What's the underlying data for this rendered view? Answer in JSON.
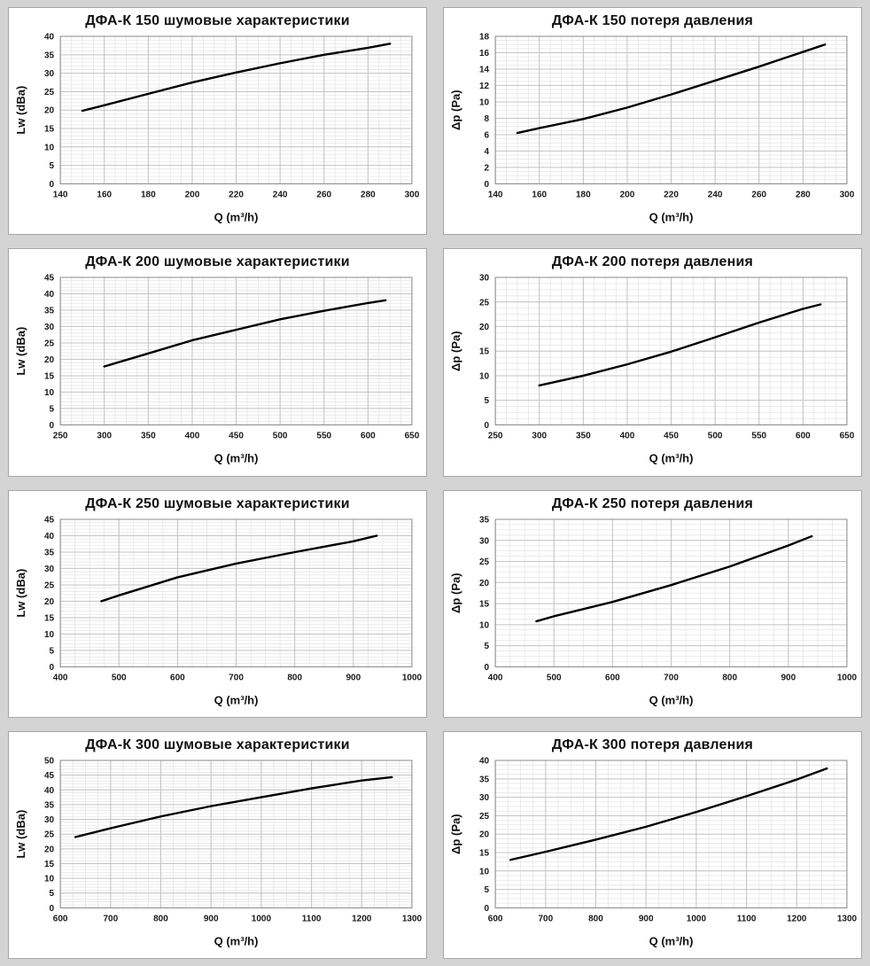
{
  "colors": {
    "page_bg": "#d4d4d4",
    "card_bg": "#ffffff",
    "card_border": "#a6a6a6",
    "curve": "#000000",
    "grid_major": "#c3c3c3",
    "grid_minor": "#e3e3e3",
    "frame": "#8c8c8c"
  },
  "chart_data": [
    {
      "type": "line",
      "title": "ДФА-К 150 шумовые характеристики",
      "xlabel": "Q (m³/h)",
      "ylabel": "Lw (dBa)",
      "xlim": [
        140,
        300
      ],
      "ylim": [
        0,
        40
      ],
      "x_major": 20,
      "x_minor": 5,
      "y_major": 5,
      "y_minor": 1,
      "grid": true,
      "legend": "none",
      "points": [
        [
          150,
          19.8
        ],
        [
          160,
          21.3
        ],
        [
          180,
          24.4
        ],
        [
          200,
          27.5
        ],
        [
          220,
          30.2
        ],
        [
          240,
          32.7
        ],
        [
          260,
          35.0
        ],
        [
          280,
          36.9
        ],
        [
          290,
          38.0
        ]
      ]
    },
    {
      "type": "line",
      "title": "ДФА-К 150 потеря давления",
      "xlabel": "Q (m³/h)",
      "ylabel": "Δp (Pa)",
      "xlim": [
        140,
        300
      ],
      "ylim": [
        0,
        18
      ],
      "x_major": 20,
      "x_minor": 5,
      "y_major": 2,
      "y_minor": 0.5,
      "grid": true,
      "legend": "none",
      "points": [
        [
          150,
          6.2
        ],
        [
          160,
          6.8
        ],
        [
          180,
          7.9
        ],
        [
          200,
          9.3
        ],
        [
          220,
          10.9
        ],
        [
          240,
          12.6
        ],
        [
          260,
          14.3
        ],
        [
          280,
          16.1
        ],
        [
          290,
          17.0
        ]
      ]
    },
    {
      "type": "line",
      "title": "ДФА-К 200 шумовые характеристики",
      "xlabel": "Q (m³/h)",
      "ylabel": "Lw (dBa)",
      "xlim": [
        250,
        650
      ],
      "ylim": [
        0,
        45
      ],
      "x_major": 50,
      "x_minor": 12.5,
      "y_major": 5,
      "y_minor": 1,
      "grid": true,
      "legend": "none",
      "points": [
        [
          300,
          17.8
        ],
        [
          350,
          21.8
        ],
        [
          400,
          25.8
        ],
        [
          450,
          29.0
        ],
        [
          500,
          32.2
        ],
        [
          550,
          34.8
        ],
        [
          600,
          37.2
        ],
        [
          620,
          38.0
        ]
      ]
    },
    {
      "type": "line",
      "title": "ДФА-К 200 потеря давления",
      "xlabel": "Q (m³/h)",
      "ylabel": "Δp (Pa)",
      "xlim": [
        250,
        650
      ],
      "ylim": [
        0,
        30
      ],
      "x_major": 50,
      "x_minor": 12.5,
      "y_major": 5,
      "y_minor": 1.25,
      "grid": true,
      "legend": "none",
      "points": [
        [
          300,
          8.0
        ],
        [
          350,
          10.0
        ],
        [
          400,
          12.3
        ],
        [
          450,
          14.9
        ],
        [
          500,
          17.8
        ],
        [
          550,
          20.8
        ],
        [
          600,
          23.6
        ],
        [
          620,
          24.5
        ]
      ]
    },
    {
      "type": "line",
      "title": "ДФА-К 250 шумовые характеристики",
      "xlabel": "Q (m³/h)",
      "ylabel": "Lw (dBa)",
      "xlim": [
        400,
        1000
      ],
      "ylim": [
        0,
        45
      ],
      "x_major": 100,
      "x_minor": 25,
      "y_major": 5,
      "y_minor": 1,
      "grid": true,
      "legend": "none",
      "points": [
        [
          470,
          20.0
        ],
        [
          500,
          21.8
        ],
        [
          600,
          27.3
        ],
        [
          700,
          31.5
        ],
        [
          800,
          35.0
        ],
        [
          900,
          38.3
        ],
        [
          940,
          40.0
        ]
      ]
    },
    {
      "type": "line",
      "title": "ДФА-К 250 потеря давления",
      "xlabel": "Q (m³/h)",
      "ylabel": "Δp (Pa)",
      "xlim": [
        400,
        1000
      ],
      "ylim": [
        0,
        35
      ],
      "x_major": 100,
      "x_minor": 25,
      "y_major": 5,
      "y_minor": 1.25,
      "grid": true,
      "legend": "none",
      "points": [
        [
          470,
          10.8
        ],
        [
          500,
          12.0
        ],
        [
          600,
          15.4
        ],
        [
          700,
          19.4
        ],
        [
          800,
          23.8
        ],
        [
          900,
          28.8
        ],
        [
          940,
          31.0
        ]
      ]
    },
    {
      "type": "line",
      "title": "ДФА-К 300 шумовые характеристики",
      "xlabel": "Q (m³/h)",
      "ylabel": "Lw (dBa)",
      "xlim": [
        600,
        1300
      ],
      "ylim": [
        0,
        50
      ],
      "x_major": 100,
      "x_minor": 25,
      "y_major": 5,
      "y_minor": 1,
      "grid": true,
      "legend": "none",
      "points": [
        [
          630,
          24.0
        ],
        [
          700,
          27.0
        ],
        [
          800,
          31.0
        ],
        [
          900,
          34.5
        ],
        [
          1000,
          37.5
        ],
        [
          1100,
          40.5
        ],
        [
          1200,
          43.2
        ],
        [
          1260,
          44.3
        ]
      ]
    },
    {
      "type": "line",
      "title": "ДФА-К 300 потеря давления",
      "xlabel": "Q (m³/h)",
      "ylabel": "Δp (Pa)",
      "xlim": [
        600,
        1300
      ],
      "ylim": [
        0,
        40
      ],
      "x_major": 100,
      "x_minor": 25,
      "y_major": 5,
      "y_minor": 1.25,
      "grid": true,
      "legend": "none",
      "points": [
        [
          630,
          13.0
        ],
        [
          700,
          15.2
        ],
        [
          800,
          18.5
        ],
        [
          900,
          22.0
        ],
        [
          1000,
          26.0
        ],
        [
          1100,
          30.3
        ],
        [
          1200,
          34.8
        ],
        [
          1260,
          37.8
        ]
      ]
    }
  ]
}
